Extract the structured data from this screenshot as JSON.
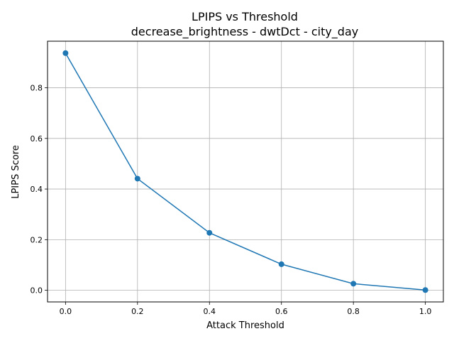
{
  "chart_data": {
    "type": "line",
    "title_line1": "LPIPS vs Threshold",
    "title_line2": "decrease_brightness - dwtDct - city_day",
    "xlabel": "Attack Threshold",
    "ylabel": "LPIPS Score",
    "x": [
      0.0,
      0.2,
      0.4,
      0.6,
      0.8,
      1.0
    ],
    "y": [
      0.937,
      0.441,
      0.227,
      0.103,
      0.026,
      0.001
    ],
    "xlim": [
      -0.05,
      1.05
    ],
    "ylim": [
      -0.046,
      0.984
    ],
    "xticks": [
      0.0,
      0.2,
      0.4,
      0.6,
      0.8,
      1.0
    ],
    "xtick_labels": [
      "0.0",
      "0.2",
      "0.4",
      "0.6",
      "0.8",
      "1.0"
    ],
    "yticks": [
      0.0,
      0.2,
      0.4,
      0.6,
      0.8
    ],
    "ytick_labels": [
      "0.0",
      "0.2",
      "0.4",
      "0.6",
      "0.8"
    ],
    "grid": true,
    "marker": "circle",
    "line_color": "#1f77b4",
    "grid_color": "#b0b0b0"
  }
}
